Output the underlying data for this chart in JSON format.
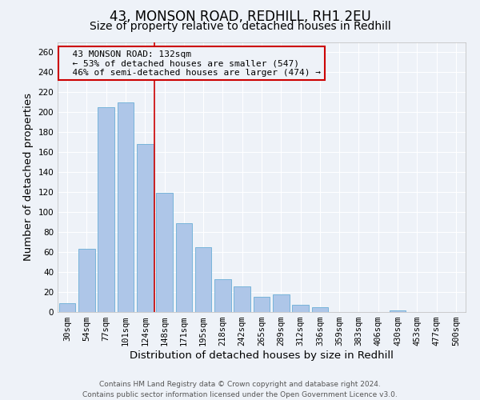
{
  "title": "43, MONSON ROAD, REDHILL, RH1 2EU",
  "subtitle": "Size of property relative to detached houses in Redhill",
  "xlabel": "Distribution of detached houses by size in Redhill",
  "ylabel": "Number of detached properties",
  "bar_labels": [
    "30sqm",
    "54sqm",
    "77sqm",
    "101sqm",
    "124sqm",
    "148sqm",
    "171sqm",
    "195sqm",
    "218sqm",
    "242sqm",
    "265sqm",
    "289sqm",
    "312sqm",
    "336sqm",
    "359sqm",
    "383sqm",
    "406sqm",
    "430sqm",
    "453sqm",
    "477sqm",
    "500sqm"
  ],
  "bar_values": [
    9,
    63,
    205,
    210,
    168,
    119,
    89,
    65,
    33,
    26,
    15,
    18,
    7,
    5,
    0,
    0,
    0,
    2,
    0,
    0,
    0
  ],
  "bar_color": "#aec6e8",
  "bar_edgecolor": "#6aaed6",
  "ylim": [
    0,
    270
  ],
  "yticks": [
    0,
    20,
    40,
    60,
    80,
    100,
    120,
    140,
    160,
    180,
    200,
    220,
    240,
    260
  ],
  "property_line_x": 4.5,
  "property_line_color": "#cc0000",
  "annotation_line1": "  43 MONSON ROAD: 132sqm",
  "annotation_line2": "  ← 53% of detached houses are smaller (547)",
  "annotation_line3": "  46% of semi-detached houses are larger (474) →",
  "annotation_box_color": "#cc0000",
  "footer_line1": "Contains HM Land Registry data © Crown copyright and database right 2024.",
  "footer_line2": "Contains public sector information licensed under the Open Government Licence v3.0.",
  "background_color": "#eef2f8",
  "grid_color": "#ffffff",
  "title_fontsize": 12,
  "subtitle_fontsize": 10,
  "axis_label_fontsize": 9.5,
  "tick_fontsize": 7.5,
  "footer_fontsize": 6.5,
  "annot_fontsize": 8
}
